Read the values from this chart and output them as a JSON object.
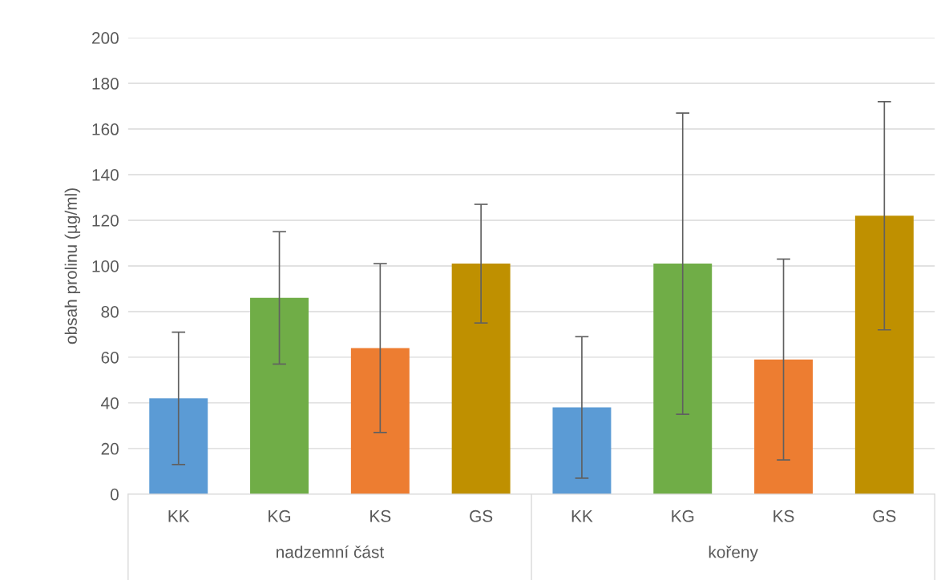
{
  "chart_data": {
    "type": "bar",
    "ylabel": "obsah prolinu (µg/ml)",
    "categories": [
      "KK",
      "KG",
      "KS",
      "GS",
      "KK",
      "KG",
      "KS",
      "GS"
    ],
    "values": [
      42,
      86,
      64,
      101,
      38,
      101,
      59,
      122
    ],
    "errors": [
      29,
      29,
      37,
      26,
      31,
      66,
      44,
      50
    ],
    "colors": [
      "#5b9bd5",
      "#70ad47",
      "#ed7d31",
      "#bf9000",
      "#5b9bd5",
      "#70ad47",
      "#ed7d31",
      "#bf9000"
    ],
    "annotations": [
      "nadzemní část",
      "kořeny"
    ],
    "ylim": [
      0,
      200
    ],
    "yticks": [
      0,
      20,
      40,
      60,
      80,
      100,
      120,
      140,
      160,
      180,
      200
    ],
    "grid": "y",
    "legend": false
  }
}
